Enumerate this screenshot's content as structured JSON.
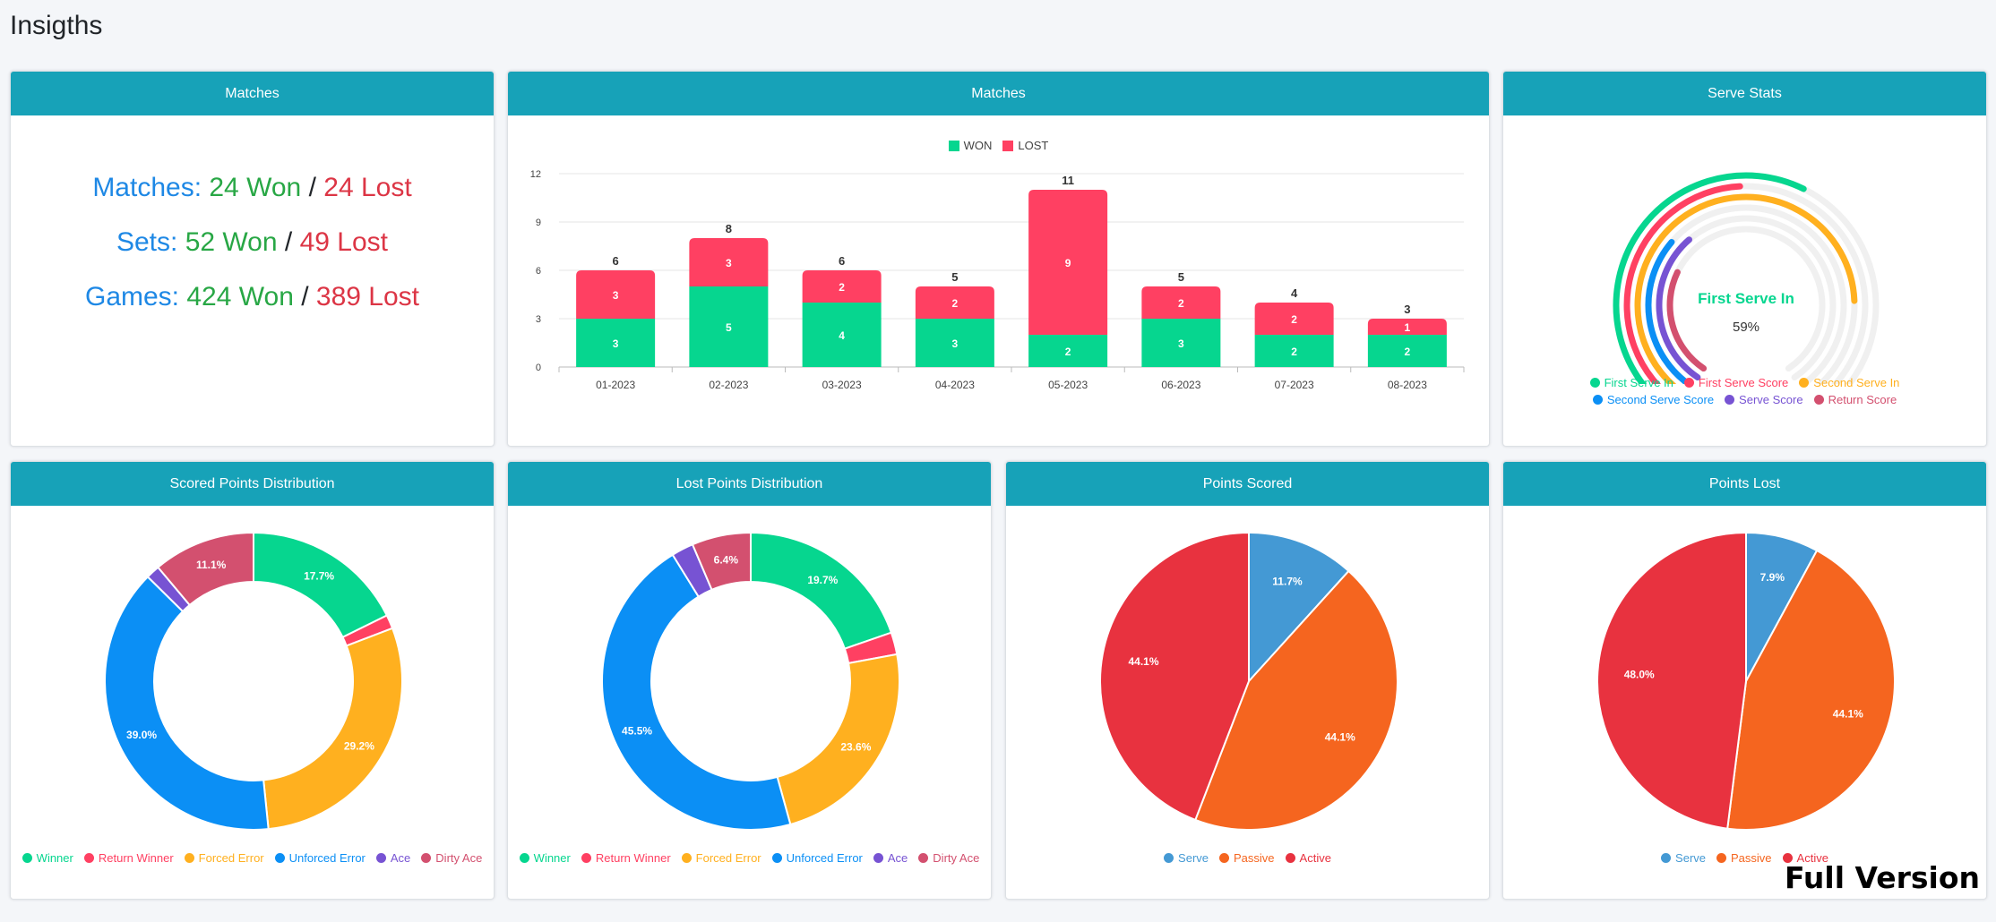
{
  "page": {
    "title": "Insigths",
    "full_version": "Full Version"
  },
  "colors": {
    "header": "#17a2b8",
    "green": "#06d68f",
    "red": "#ff4062",
    "orange": "#ffb01f",
    "blue": "#0b8ff5",
    "purple": "#7753d3",
    "rose": "#d3506f",
    "pie_blue": "#4499d4",
    "pie_orange": "#f5651f",
    "pie_red": "#e8323f"
  },
  "summary_card": {
    "title": "Matches",
    "rows": [
      {
        "label": "Matches:",
        "won": "24 Won",
        "sep": "/",
        "lost": "24 Lost"
      },
      {
        "label": "Sets:",
        "won": "52 Won",
        "sep": "/",
        "lost": "49 Lost"
      },
      {
        "label": "Games:",
        "won": "424 Won",
        "sep": "/",
        "lost": "389 Lost"
      }
    ]
  },
  "matches_chart_card": {
    "title": "Matches"
  },
  "serve_card": {
    "title": "Serve Stats",
    "center_label": "First Serve In",
    "center_value": "59%"
  },
  "scored_card": {
    "title": "Scored Points Distribution"
  },
  "lost_card": {
    "title": "Lost Points Distribution"
  },
  "points_scored_card": {
    "title": "Points Scored"
  },
  "points_lost_card": {
    "title": "Points Lost"
  },
  "chart_data": [
    {
      "id": "matches_bar",
      "type": "bar",
      "title": "",
      "categories": [
        "01-2023",
        "02-2023",
        "03-2023",
        "04-2023",
        "05-2023",
        "06-2023",
        "07-2023",
        "08-2023"
      ],
      "series": [
        {
          "name": "WON",
          "values": [
            3,
            5,
            4,
            3,
            2,
            3,
            2,
            2
          ],
          "color": "#06d68f"
        },
        {
          "name": "LOST",
          "values": [
            3,
            3,
            2,
            2,
            9,
            2,
            2,
            1
          ],
          "color": "#ff4062"
        }
      ],
      "totals": [
        6,
        8,
        6,
        5,
        11,
        5,
        4,
        3
      ],
      "y_ticks": [
        0,
        3,
        6,
        9,
        12
      ],
      "ylim": [
        0,
        12
      ],
      "stacked": true,
      "legend": "top",
      "grid": true
    },
    {
      "id": "serve_radial",
      "type": "radial",
      "title": "",
      "categories": [
        "First Serve In",
        "First Serve Score",
        "Second Serve In",
        "Second Serve Score",
        "Serve Score",
        "Return Score"
      ],
      "values": [
        59,
        49,
        80,
        33,
        36,
        28
      ],
      "colors": [
        "#06d68f",
        "#ff4062",
        "#ffb01f",
        "#0b8ff5",
        "#7753d3",
        "#d3506f"
      ],
      "legend": "bottom"
    },
    {
      "id": "scored_donut",
      "type": "pie",
      "donut": true,
      "title": "",
      "labels": [
        "Winner",
        "Return Winner",
        "Forced Error",
        "Unforced Error",
        "Ace",
        "Dirty Ace"
      ],
      "values": [
        17.7,
        1.5,
        29.2,
        39.0,
        1.5,
        11.1
      ],
      "data_labels": [
        "17.7%",
        "",
        "29.2%",
        "39.0%",
        "",
        "11.1%"
      ],
      "colors": [
        "#06d68f",
        "#ff4062",
        "#ffb01f",
        "#0b8ff5",
        "#7753d3",
        "#d3506f"
      ],
      "legend": "bottom"
    },
    {
      "id": "lost_donut",
      "type": "pie",
      "donut": true,
      "title": "",
      "labels": [
        "Winner",
        "Return Winner",
        "Forced Error",
        "Unforced Error",
        "Ace",
        "Dirty Ace"
      ],
      "values": [
        19.7,
        2.4,
        23.6,
        45.5,
        2.4,
        6.4
      ],
      "data_labels": [
        "19.7%",
        "",
        "23.6%",
        "45.5%",
        "",
        "6.4%"
      ],
      "colors": [
        "#06d68f",
        "#ff4062",
        "#ffb01f",
        "#0b8ff5",
        "#7753d3",
        "#d3506f"
      ],
      "legend": "bottom"
    },
    {
      "id": "points_scored_pie",
      "type": "pie",
      "title": "",
      "labels": [
        "Serve",
        "Passive",
        "Active"
      ],
      "values": [
        11.7,
        44.1,
        44.1
      ],
      "data_labels": [
        "11.7%",
        "44.1%",
        "44.1%"
      ],
      "colors": [
        "#4499d4",
        "#f5651f",
        "#e8323f"
      ],
      "legend": "bottom"
    },
    {
      "id": "points_lost_pie",
      "type": "pie",
      "title": "",
      "labels": [
        "Serve",
        "Passive",
        "Active"
      ],
      "values": [
        7.9,
        44.1,
        48.0
      ],
      "data_labels": [
        "7.9%",
        "44.1%",
        "48.0%"
      ],
      "colors": [
        "#4499d4",
        "#f5651f",
        "#e8323f"
      ],
      "legend": "bottom"
    }
  ]
}
